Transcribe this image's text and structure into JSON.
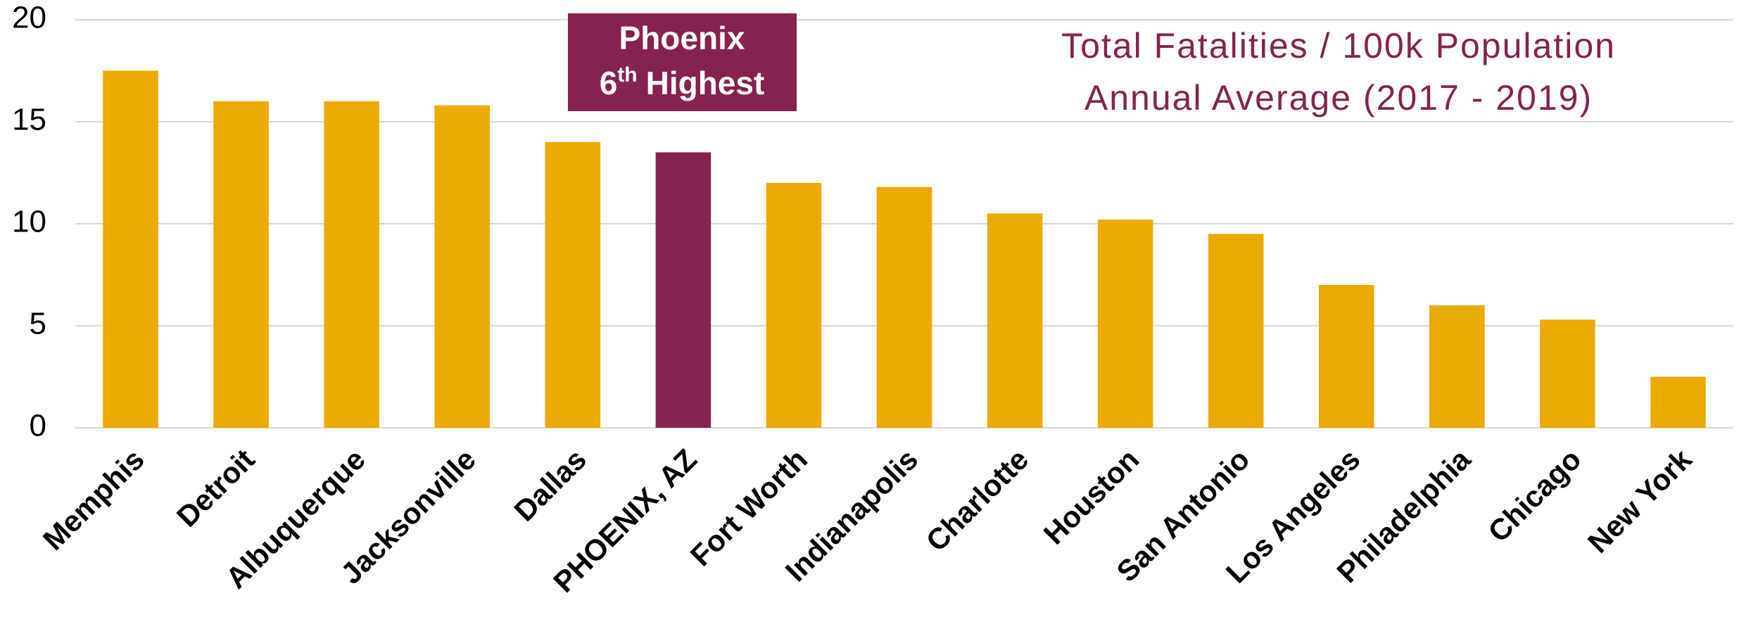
{
  "chart_data": {
    "type": "bar",
    "title": [
      "Total Fatalities / 100k Population",
      "Annual Average (2017 - 2019)"
    ],
    "annotation": [
      "Phoenix",
      "6",
      "th",
      "Highest"
    ],
    "categories": [
      "Memphis",
      "Detroit",
      "Albuquerque",
      "Jacksonville",
      "Dallas",
      "PHOENIX, AZ",
      "Fort Worth",
      "Indianapolis",
      "Charlotte",
      "Houston",
      "San Antonio",
      "Los Angeles",
      "Philadelphia",
      "Chicago",
      "New York"
    ],
    "values": [
      17.5,
      16,
      16,
      15.8,
      14,
      13.5,
      12,
      11.8,
      10.5,
      10.2,
      9.5,
      7,
      6,
      5.3,
      2.5
    ],
    "colors": [
      "#ebaa00",
      "#ebaa00",
      "#ebaa00",
      "#ebaa00",
      "#ebaa00",
      "#86224f",
      "#ebaa00",
      "#ebaa00",
      "#ebaa00",
      "#ebaa00",
      "#ebaa00",
      "#ebaa00",
      "#ebaa00",
      "#ebaa00",
      "#ebaa00"
    ],
    "annotation_color": "#86224f",
    "title_color": "#86224f",
    "ylim": [
      0,
      20
    ],
    "yticks": [
      0,
      5,
      10,
      15,
      20
    ],
    "grid": true
  }
}
